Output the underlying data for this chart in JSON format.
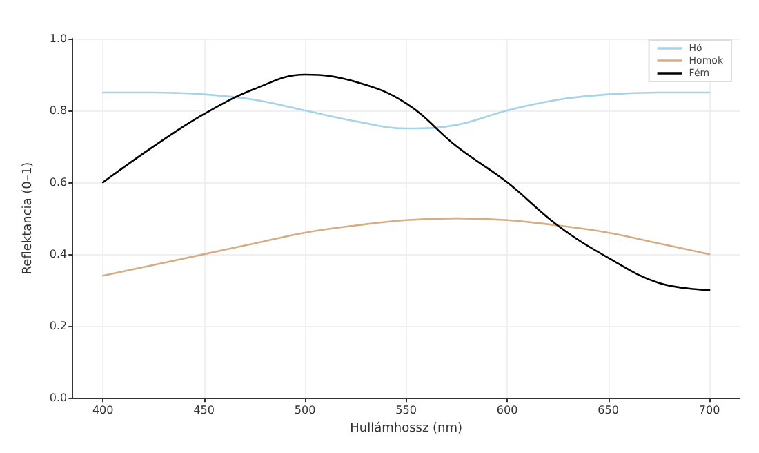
{
  "chart_data": {
    "type": "line",
    "xlabel": "Hullámhossz (nm)",
    "ylabel": "Reflektancia (0–1)",
    "x": [
      400,
      425,
      450,
      475,
      500,
      525,
      550,
      575,
      600,
      625,
      650,
      675,
      700
    ],
    "series": [
      {
        "name": "Hó",
        "color": "#a6d3e6",
        "values": [
          0.85,
          0.85,
          0.845,
          0.83,
          0.8,
          0.77,
          0.75,
          0.76,
          0.8,
          0.83,
          0.845,
          0.85,
          0.85
        ]
      },
      {
        "name": "Homok",
        "color": "#d4ad85",
        "values": [
          0.34,
          0.37,
          0.4,
          0.43,
          0.46,
          0.48,
          0.495,
          0.5,
          0.495,
          0.48,
          0.46,
          0.43,
          0.4
        ]
      },
      {
        "name": "Fém",
        "color": "#000000",
        "values": [
          0.6,
          0.7,
          0.79,
          0.86,
          0.9,
          0.88,
          0.82,
          0.7,
          0.6,
          0.48,
          0.39,
          0.32,
          0.3
        ]
      }
    ],
    "xlim": [
      385,
      715
    ],
    "xticks": [
      400,
      450,
      500,
      550,
      600,
      650,
      700
    ],
    "ylim": [
      0,
      1
    ],
    "yticks": [
      {
        "value": 0,
        "label": "0.0"
      },
      {
        "value": 0.2,
        "label": "0.2"
      },
      {
        "value": 0.4,
        "label": "0.4"
      },
      {
        "value": 0.6,
        "label": "0.6"
      },
      {
        "value": 0.8,
        "label": "0.8"
      },
      {
        "value": 1,
        "label": "1.0"
      }
    ],
    "grid": true,
    "legend": "top right",
    "marker": "none",
    "line_style": "solid"
  }
}
